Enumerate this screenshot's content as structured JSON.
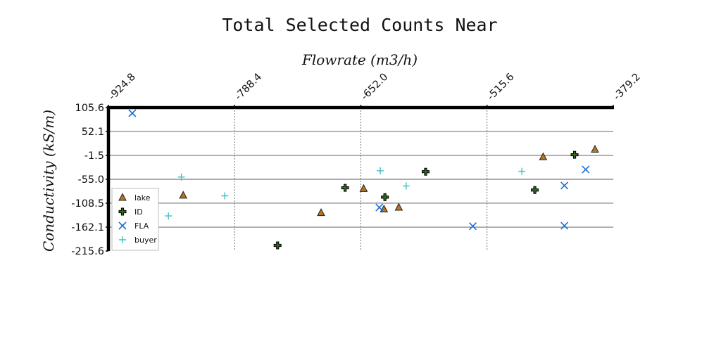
{
  "chart_data": {
    "type": "scatter",
    "title": "Total Selected Counts Near",
    "xlabel": "Flowrate (m3/h)",
    "ylabel": "Conductivity (kS/m)",
    "xlim": [
      -924.8,
      -379.2
    ],
    "ylim": [
      -215.6,
      105.6
    ],
    "x_ticks": [
      "-924.8",
      "-788.4",
      "-652.0",
      "-515.6",
      "-379.2"
    ],
    "y_ticks": [
      "105.6",
      "52.1",
      "-1.5",
      "-55.0",
      "-108.5",
      "-162.1",
      "-215.6"
    ],
    "x_axis_position": "top",
    "grid": {
      "x": "dashed",
      "y": "solid"
    },
    "legend_position": "lower-left",
    "series": [
      {
        "name": "lake",
        "marker": "triangle",
        "color": "#b8731e",
        "points": [
          {
            "x": -844,
            "y": -91
          },
          {
            "x": -695,
            "y": -130
          },
          {
            "x": -649,
            "y": -76
          },
          {
            "x": -627,
            "y": -122
          },
          {
            "x": -611,
            "y": -118
          },
          {
            "x": -455,
            "y": -5
          },
          {
            "x": -399,
            "y": 12
          }
        ]
      },
      {
        "name": "ID",
        "marker": "plus-bold",
        "color": "#2e6b1e",
        "points": [
          {
            "x": -742,
            "y": -203
          },
          {
            "x": -669,
            "y": -74
          },
          {
            "x": -626,
            "y": -95
          },
          {
            "x": -582,
            "y": -38
          },
          {
            "x": -464,
            "y": -79
          },
          {
            "x": -421,
            "y": 0
          }
        ]
      },
      {
        "name": "FLA",
        "marker": "x",
        "color": "#1f6fd0",
        "points": [
          {
            "x": -899,
            "y": 93
          },
          {
            "x": -632,
            "y": -118
          },
          {
            "x": -531,
            "y": -160
          },
          {
            "x": -432,
            "y": -69
          },
          {
            "x": -432,
            "y": -159
          },
          {
            "x": -409,
            "y": -33
          }
        ]
      },
      {
        "name": "buyer",
        "marker": "plus",
        "color": "#3cc0c6",
        "points": [
          {
            "x": -846,
            "y": -50
          },
          {
            "x": -860,
            "y": -137
          },
          {
            "x": -799,
            "y": -92
          },
          {
            "x": -603,
            "y": -70
          },
          {
            "x": -631,
            "y": -36
          },
          {
            "x": -478,
            "y": -37
          }
        ]
      }
    ]
  }
}
